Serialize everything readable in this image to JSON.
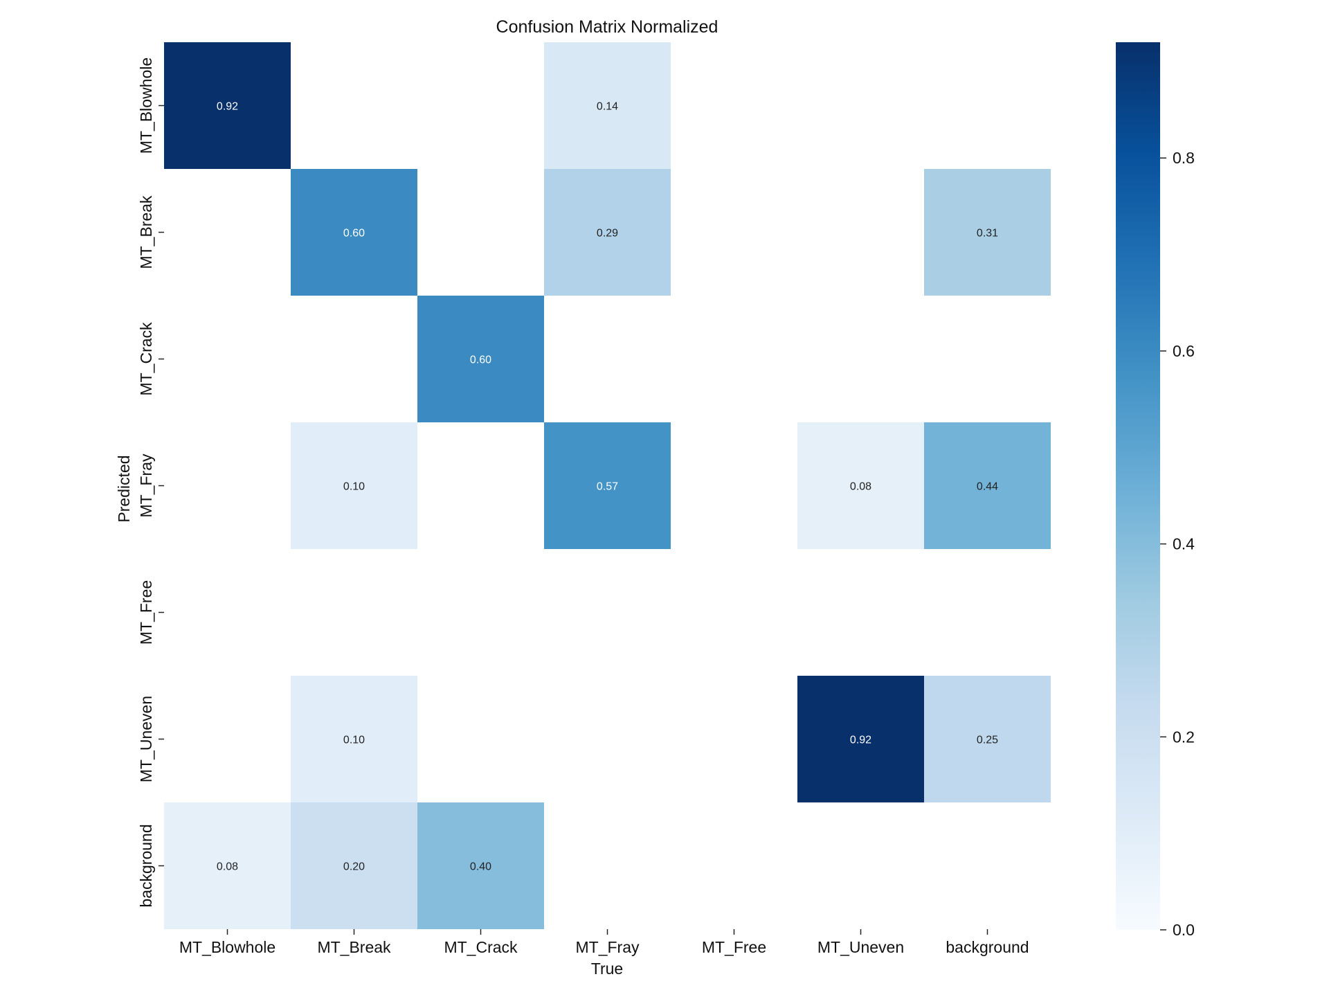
{
  "chart_data": {
    "type": "heatmap",
    "title": "Confusion Matrix Normalized",
    "xlabel": "True",
    "ylabel": "Predicted",
    "x_categories": [
      "MT_Blowhole",
      "MT_Break",
      "MT_Crack",
      "MT_Fray",
      "MT_Free",
      "MT_Uneven",
      "background"
    ],
    "y_categories": [
      "MT_Blowhole",
      "MT_Break",
      "MT_Crack",
      "MT_Fray",
      "MT_Free",
      "MT_Uneven",
      "background"
    ],
    "values": [
      [
        0.92,
        null,
        null,
        0.14,
        null,
        null,
        null
      ],
      [
        null,
        0.6,
        null,
        0.29,
        null,
        null,
        0.31
      ],
      [
        null,
        null,
        0.6,
        null,
        null,
        null,
        null
      ],
      [
        null,
        0.1,
        null,
        0.57,
        null,
        0.08,
        0.44
      ],
      [
        null,
        null,
        null,
        null,
        null,
        null,
        null
      ],
      [
        null,
        0.1,
        null,
        null,
        null,
        0.92,
        0.25
      ],
      [
        0.08,
        0.2,
        0.4,
        null,
        null,
        null,
        null
      ]
    ],
    "value_labels": [
      [
        "0.92",
        "",
        "",
        "0.14",
        "",
        "",
        ""
      ],
      [
        "",
        "0.60",
        "",
        "0.29",
        "",
        "",
        "0.31"
      ],
      [
        "",
        "",
        "0.60",
        "",
        "",
        "",
        ""
      ],
      [
        "",
        "0.10",
        "",
        "0.57",
        "",
        "0.08",
        "0.44"
      ],
      [
        "",
        "",
        "",
        "",
        "",
        "",
        ""
      ],
      [
        "",
        "0.10",
        "",
        "",
        "",
        "0.92",
        "0.25"
      ],
      [
        "0.08",
        "0.20",
        "0.40",
        "",
        "",
        "",
        ""
      ]
    ],
    "colormap": "Blues",
    "colorbar": {
      "range": [
        0,
        0.92
      ],
      "ticks": [
        0.0,
        0.2,
        0.4,
        0.6,
        0.8
      ],
      "tick_labels": [
        "0.0",
        "0.2",
        "0.4",
        "0.6",
        "0.8"
      ]
    }
  }
}
